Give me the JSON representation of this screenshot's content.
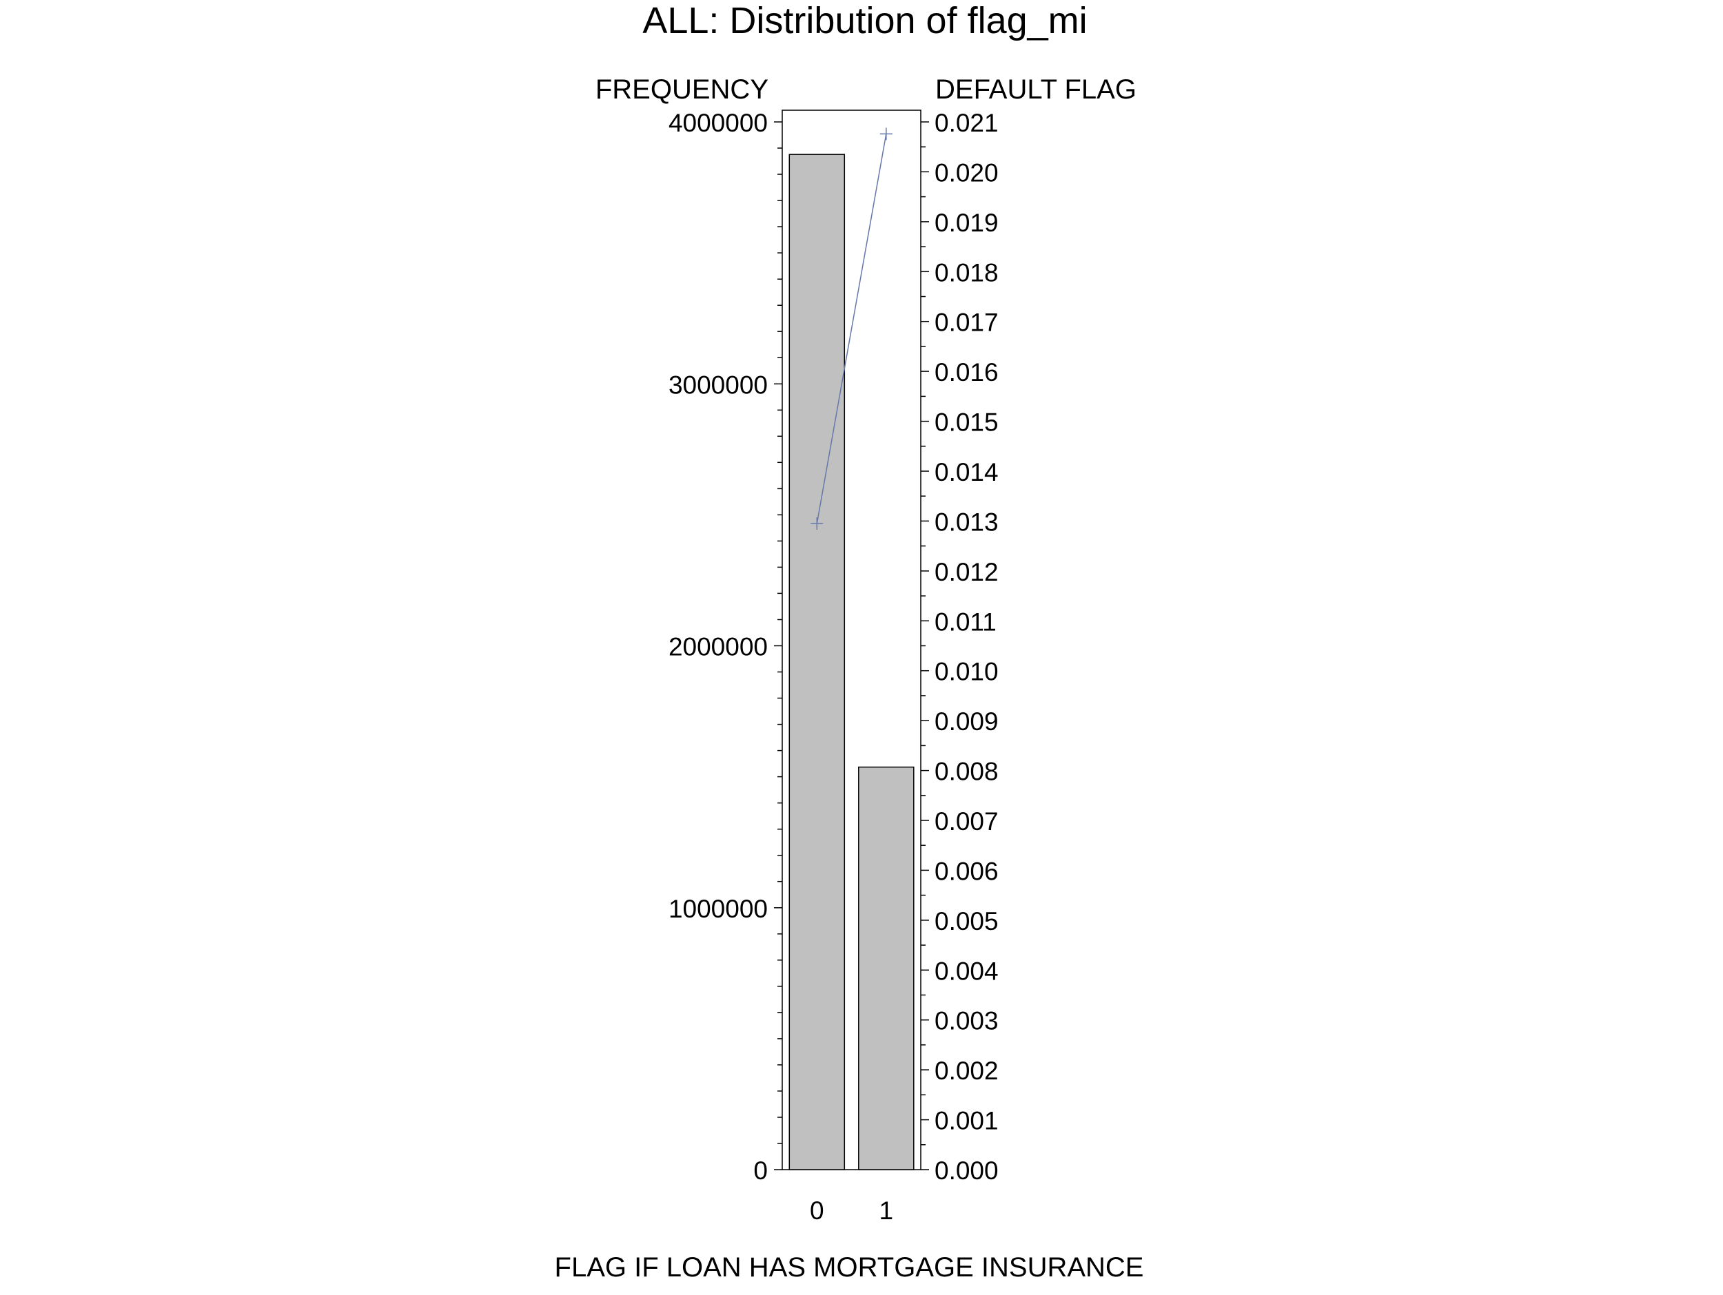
{
  "chart_data": {
    "type": "bar",
    "title": "ALL: Distribution of flag_mi",
    "xlabel": "FLAG IF LOAN HAS MORTGAGE INSURANCE",
    "ylabel": "FREQUENCY",
    "y2label": "DEFAULT FLAG",
    "categories": [
      "0",
      "1"
    ],
    "ylim": [
      0,
      4000000
    ],
    "y2lim": [
      0,
      0.021
    ],
    "yticks": [
      "0",
      "1000000",
      "2000000",
      "3000000",
      "4000000"
    ],
    "y2ticks": [
      "0.000",
      "0.001",
      "0.002",
      "0.003",
      "0.004",
      "0.005",
      "0.006",
      "0.007",
      "0.008",
      "0.009",
      "0.010",
      "0.011",
      "0.012",
      "0.013",
      "0.014",
      "0.015",
      "0.016",
      "0.017",
      "0.018",
      "0.019",
      "0.020",
      "0.021"
    ],
    "series": [
      {
        "values": [
          3876000,
          1537000
        ],
        "axis": "left",
        "kind": "bar",
        "color": "#c0c0c0"
      },
      {
        "values": [
          0.01295,
          0.02076
        ],
        "axis": "right",
        "kind": "line",
        "marker": "plus",
        "color": "#6677aa"
      }
    ],
    "grid": false
  }
}
